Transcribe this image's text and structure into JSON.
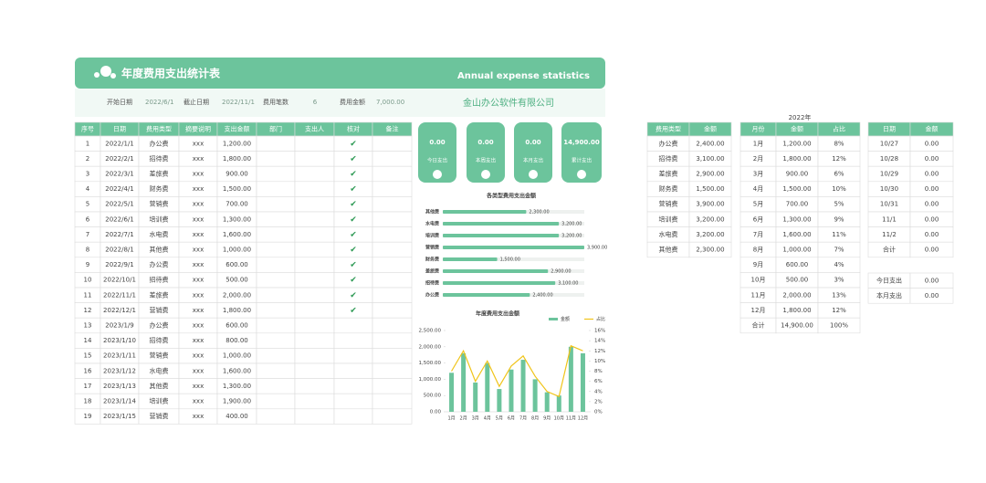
{
  "header": {
    "title": "年度费用支出统计表",
    "subtitle": "Annual expense statistics"
  },
  "info": {
    "start_label": "开始日期",
    "start": "2022/6/1",
    "end_label": "截止日期",
    "end": "2022/11/1",
    "count_label": "费用笔数",
    "count": "6",
    "amount_label": "费用金额",
    "amount": "7,000.00",
    "company": "金山办公软件有限公司"
  },
  "main_table": {
    "headers": [
      "序号",
      "日期",
      "费用类型",
      "摘要说明",
      "支出金额",
      "部门",
      "支出人",
      "核对",
      "备注"
    ],
    "rows": [
      {
        "no": 1,
        "date": "2022/1/1",
        "type": "办公费",
        "desc": "xxx",
        "amount": "1,200.00",
        "check": "✔"
      },
      {
        "no": 2,
        "date": "2022/2/1",
        "type": "招待费",
        "desc": "xxx",
        "amount": "1,800.00",
        "check": "✔"
      },
      {
        "no": 3,
        "date": "2022/3/1",
        "type": "差旅费",
        "desc": "xxx",
        "amount": "900.00",
        "check": "✔"
      },
      {
        "no": 4,
        "date": "2022/4/1",
        "type": "财务费",
        "desc": "xxx",
        "amount": "1,500.00",
        "check": "✔"
      },
      {
        "no": 5,
        "date": "2022/5/1",
        "type": "营销费",
        "desc": "xxx",
        "amount": "700.00",
        "check": "✔"
      },
      {
        "no": 6,
        "date": "2022/6/1",
        "type": "培训费",
        "desc": "xxx",
        "amount": "1,300.00",
        "check": "✔"
      },
      {
        "no": 7,
        "date": "2022/7/1",
        "type": "水电费",
        "desc": "xxx",
        "amount": "1,600.00",
        "check": "✔"
      },
      {
        "no": 8,
        "date": "2022/8/1",
        "type": "其他费",
        "desc": "xxx",
        "amount": "1,000.00",
        "check": "✔"
      },
      {
        "no": 9,
        "date": "2022/9/1",
        "type": "办公费",
        "desc": "xxx",
        "amount": "600.00",
        "check": "✔"
      },
      {
        "no": 10,
        "date": "2022/10/1",
        "type": "招待费",
        "desc": "xxx",
        "amount": "500.00",
        "check": "✔"
      },
      {
        "no": 11,
        "date": "2022/11/1",
        "type": "差旅费",
        "desc": "xxx",
        "amount": "2,000.00",
        "check": "✔"
      },
      {
        "no": 12,
        "date": "2022/12/1",
        "type": "营销费",
        "desc": "xxx",
        "amount": "1,800.00",
        "check": "✔"
      },
      {
        "no": 13,
        "date": "2023/1/9",
        "type": "办公费",
        "desc": "xxx",
        "amount": "600.00"
      },
      {
        "no": 14,
        "date": "2023/1/10",
        "type": "招待费",
        "desc": "xxx",
        "amount": "800.00"
      },
      {
        "no": 15,
        "date": "2023/1/11",
        "type": "营销费",
        "desc": "xxx",
        "amount": "1,000.00"
      },
      {
        "no": 16,
        "date": "2023/1/12",
        "type": "水电费",
        "desc": "xxx",
        "amount": "1,600.00"
      },
      {
        "no": 17,
        "date": "2023/1/13",
        "type": "其他费",
        "desc": "xxx",
        "amount": "1,300.00"
      },
      {
        "no": 18,
        "date": "2023/1/14",
        "type": "培训费",
        "desc": "xxx",
        "amount": "1,900.00"
      },
      {
        "no": 19,
        "date": "2023/1/15",
        "type": "营销费",
        "desc": "xxx",
        "amount": "400.00"
      }
    ]
  },
  "cards": [
    {
      "value": "0.00",
      "label": "今日支出"
    },
    {
      "value": "0.00",
      "label": "本周支出"
    },
    {
      "value": "0.00",
      "label": "本月支出"
    },
    {
      "value": "14,900.00",
      "label": "累计支出"
    }
  ],
  "bar_chart": {
    "type": "bar",
    "orientation": "horizontal",
    "title": "各类型费用支出金额",
    "color": "#6cc49c",
    "categories": [
      "其他费",
      "水电费",
      "培训费",
      "营销费",
      "财务费",
      "差旅费",
      "招待费",
      "办公费"
    ],
    "values": [
      2300,
      3200,
      3200,
      3900,
      1500,
      2900,
      3100,
      2400
    ],
    "value_labels": [
      "2,300.00",
      "3,200.00",
      "3,200.00",
      "3,900.00",
      "1,500.00",
      "2,900.00",
      "3,100.00",
      "2,400.00"
    ]
  },
  "combo_chart": {
    "type": "bar_line",
    "title": "年度费用支出金额",
    "categories": [
      "1月",
      "2月",
      "3月",
      "4月",
      "5月",
      "6月",
      "7月",
      "8月",
      "9月",
      "10月",
      "11月",
      "12月"
    ],
    "series": [
      {
        "name": "金额",
        "type": "bar",
        "color": "#6cc49c",
        "values": [
          1200,
          1800,
          900,
          1500,
          700,
          1300,
          1600,
          1000,
          600,
          500,
          2000,
          1800
        ]
      },
      {
        "name": "占比",
        "type": "line",
        "axis": "y2",
        "color": "#f0c419",
        "values": [
          8,
          12,
          6,
          10,
          5,
          9,
          11,
          7,
          4,
          3,
          13,
          12
        ]
      }
    ],
    "ylim": [
      0,
      2500
    ],
    "yticks": [
      {
        "value": 0,
        "label": "0.00"
      },
      {
        "value": 500,
        "label": "500.00"
      },
      {
        "value": 1000,
        "label": "1,000.00"
      },
      {
        "value": 1500,
        "label": "1,500.00"
      },
      {
        "value": 2000,
        "label": "2,000.00"
      },
      {
        "value": 2500,
        "label": "2,500.00"
      }
    ],
    "y2lim": [
      0,
      16
    ],
    "y2ticks": [
      {
        "value": 0,
        "label": "0%"
      },
      {
        "value": 2,
        "label": "2%"
      },
      {
        "value": 4,
        "label": "4%"
      },
      {
        "value": 6,
        "label": "6%"
      },
      {
        "value": 8,
        "label": "8%"
      },
      {
        "value": 10,
        "label": "10%"
      },
      {
        "value": 12,
        "label": "12%"
      },
      {
        "value": 14,
        "label": "14%"
      },
      {
        "value": 16,
        "label": "16%"
      }
    ]
  },
  "type_table": {
    "headers": [
      "费用类型",
      "金额"
    ],
    "rows": [
      [
        "办公费",
        "2,400.00"
      ],
      [
        "招待费",
        "3,100.00"
      ],
      [
        "差旅费",
        "2,900.00"
      ],
      [
        "财务费",
        "1,500.00"
      ],
      [
        "营销费",
        "3,900.00"
      ],
      [
        "培训费",
        "3,200.00"
      ],
      [
        "水电费",
        "3,200.00"
      ],
      [
        "其他费",
        "2,300.00"
      ]
    ]
  },
  "month_table": {
    "title": "2022年",
    "headers": [
      "月份",
      "金额",
      "占比"
    ],
    "rows": [
      [
        "1月",
        "1,200.00",
        "8%"
      ],
      [
        "2月",
        "1,800.00",
        "12%"
      ],
      [
        "3月",
        "900.00",
        "6%"
      ],
      [
        "4月",
        "1,500.00",
        "10%"
      ],
      [
        "5月",
        "700.00",
        "5%"
      ],
      [
        "6月",
        "1,300.00",
        "9%"
      ],
      [
        "7月",
        "1,600.00",
        "11%"
      ],
      [
        "8月",
        "1,000.00",
        "7%"
      ],
      [
        "9月",
        "600.00",
        "4%"
      ],
      [
        "10月",
        "500.00",
        "3%"
      ],
      [
        "11月",
        "2,000.00",
        "13%"
      ],
      [
        "12月",
        "1,800.00",
        "12%"
      ],
      [
        "合计",
        "14,900.00",
        "100%"
      ]
    ]
  },
  "daily_table": {
    "headers": [
      "日期",
      "金额"
    ],
    "rows": [
      [
        "10/27",
        "0.00"
      ],
      [
        "10/28",
        "0.00"
      ],
      [
        "10/29",
        "0.00"
      ],
      [
        "10/30",
        "0.00"
      ],
      [
        "10/31",
        "0.00"
      ],
      [
        "11/1",
        "0.00"
      ],
      [
        "11/2",
        "0.00"
      ],
      [
        "合计",
        "0.00"
      ]
    ],
    "summary": [
      [
        "今日支出",
        "0.00"
      ],
      [
        "本月支出",
        "0.00"
      ]
    ]
  }
}
